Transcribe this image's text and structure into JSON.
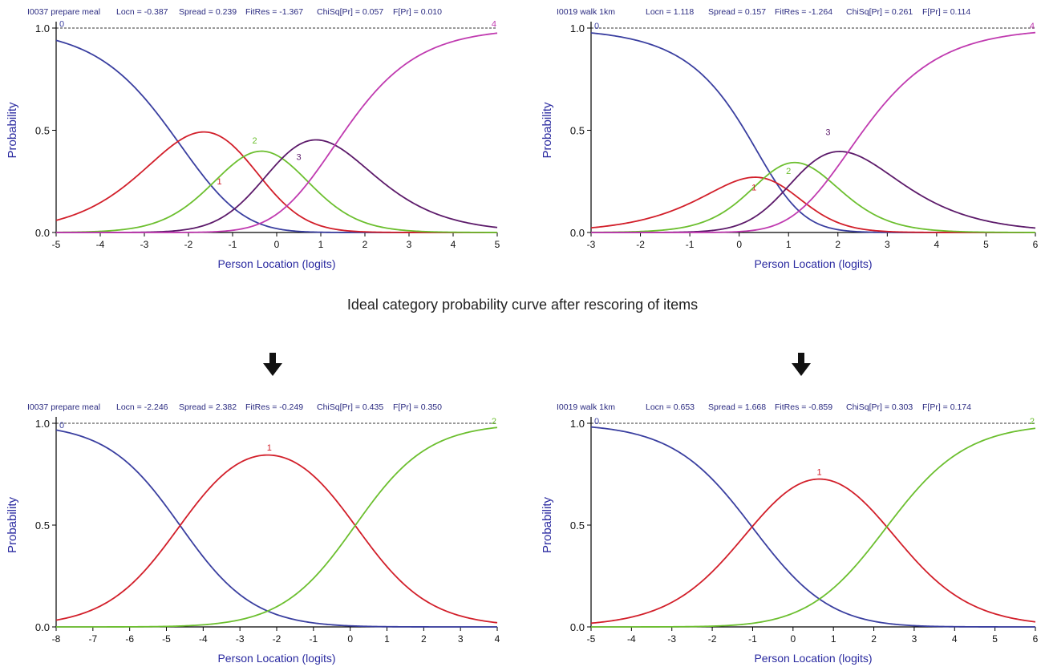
{
  "caption": "Ideal category probability curve after rescoring of items",
  "colors": {
    "cat0": "#3a3fa0",
    "cat1": "#d21f2a",
    "cat2": "#6cbf2f",
    "cat3": "#5c1a6a",
    "cat4": "#c03bb0",
    "axis_label": "#2a2aa0"
  },
  "icons": {
    "arrow": "arrow-down-icon"
  },
  "chart_data": [
    {
      "type": "line",
      "header": {
        "item": "I0037  prepare meal",
        "locn": "Locn = -0.387",
        "spread": "Spread = 0.239",
        "fitres": "FitRes = -1.367",
        "chisq": "ChiSq[Pr] = 0.057",
        "fpr": "F[Pr] = 0.010"
      },
      "xlabel": "Person Location (logits)",
      "ylabel": "Probability",
      "xlim": [
        -5,
        5
      ],
      "ylim": [
        0,
        1
      ],
      "xticks": [
        "-5",
        "-4",
        "-3",
        "-2",
        "-1",
        "0",
        "1",
        "2",
        "3",
        "4",
        "5"
      ],
      "yticks": [
        "0.0",
        "0.5",
        "1.0"
      ],
      "reference_line_y": 1.0,
      "thresholds": [
        -2.24,
        -0.75,
        0.12,
        1.32
      ],
      "series": [
        {
          "label": "0",
          "category": 0,
          "peak_x": -5.0,
          "peak_y": 0.99
        },
        {
          "label": "1",
          "category": 1,
          "peak_x": -1.3,
          "peak_y": 0.22
        },
        {
          "label": "2",
          "category": 2,
          "peak_x": -0.5,
          "peak_y": 0.42
        },
        {
          "label": "3",
          "category": 3,
          "peak_x": 0.5,
          "peak_y": 0.34
        },
        {
          "label": "4",
          "category": 4,
          "peak_x": 5.0,
          "peak_y": 0.99
        }
      ]
    },
    {
      "type": "line",
      "header": {
        "item": "I0019  walk 1km",
        "locn": "Locn = 1.118",
        "spread": "Spread = 0.157",
        "fitres": "FitRes = -1.264",
        "chisq": "ChiSq[Pr] = 0.261",
        "fpr": "F[Pr] = 0.114"
      },
      "xlabel": "Person Location (logits)",
      "ylabel": "Probability",
      "xlim": [
        -3,
        6
      ],
      "ylim": [
        0,
        1
      ],
      "xticks": [
        "-3",
        "-2",
        "-1",
        "0",
        "1",
        "2",
        "3",
        "4",
        "5",
        "6"
      ],
      "yticks": [
        "0.0",
        "0.5",
        "1.0"
      ],
      "reference_line_y": 1.0,
      "thresholds": [
        0.75,
        0.5,
        1.4,
        2.2
      ],
      "series": [
        {
          "label": "0",
          "category": 0,
          "peak_x": -3.0,
          "peak_y": 0.98
        },
        {
          "label": "1",
          "category": 1,
          "peak_x": 0.3,
          "peak_y": 0.19
        },
        {
          "label": "2",
          "category": 2,
          "peak_x": 1.0,
          "peak_y": 0.27
        },
        {
          "label": "3",
          "category": 3,
          "peak_x": 1.8,
          "peak_y": 0.46
        },
        {
          "label": "4",
          "category": 4,
          "peak_x": 6.0,
          "peak_y": 0.98
        }
      ]
    },
    {
      "type": "line",
      "header": {
        "item": "I0037  prepare meal",
        "locn": "Locn = -2.246",
        "spread": "Spread = 2.382",
        "fitres": "FitRes = -0.249",
        "chisq": "ChiSq[Pr] = 0.435",
        "fpr": "F[Pr] = 0.350"
      },
      "xlabel": "Person Location (logits)",
      "ylabel": "Probability",
      "xlim": [
        -8,
        4
      ],
      "ylim": [
        0,
        1
      ],
      "xticks": [
        "-8",
        "-7",
        "-6",
        "-5",
        "-4",
        "-3",
        "-2",
        "-1",
        "0",
        "1",
        "2",
        "3",
        "4"
      ],
      "yticks": [
        "0.0",
        "0.5",
        "1.0"
      ],
      "reference_line_y": 1.0,
      "thresholds": [
        -4.628,
        0.136
      ],
      "series": [
        {
          "label": "0",
          "category": 0,
          "peak_x": -8.0,
          "peak_y": 0.96
        },
        {
          "label": "1",
          "category": 1,
          "peak_x": -2.2,
          "peak_y": 0.85
        },
        {
          "label": "2",
          "category": 2,
          "peak_x": 4.0,
          "peak_y": 0.98
        }
      ]
    },
    {
      "type": "line",
      "header": {
        "item": "I0019  walk 1km",
        "locn": "Locn = 0.653",
        "spread": "Spread = 1.668",
        "fitres": "FitRes = -0.859",
        "chisq": "ChiSq[Pr] = 0.303",
        "fpr": "F[Pr] = 0.174"
      },
      "xlabel": "Person Location (logits)",
      "ylabel": "Probability",
      "xlim": [
        -5,
        6
      ],
      "ylim": [
        0,
        1
      ],
      "xticks": [
        "-5",
        "-4",
        "-3",
        "-2",
        "-1",
        "0",
        "1",
        "2",
        "3",
        "4",
        "5",
        "6"
      ],
      "yticks": [
        "0.0",
        "0.5",
        "1.0"
      ],
      "reference_line_y": 1.0,
      "thresholds": [
        -1.015,
        2.321
      ],
      "series": [
        {
          "label": "0",
          "category": 0,
          "peak_x": -5.0,
          "peak_y": 0.98
        },
        {
          "label": "1",
          "category": 1,
          "peak_x": 0.65,
          "peak_y": 0.73
        },
        {
          "label": "2",
          "category": 2,
          "peak_x": 6.0,
          "peak_y": 0.98
        }
      ]
    }
  ]
}
